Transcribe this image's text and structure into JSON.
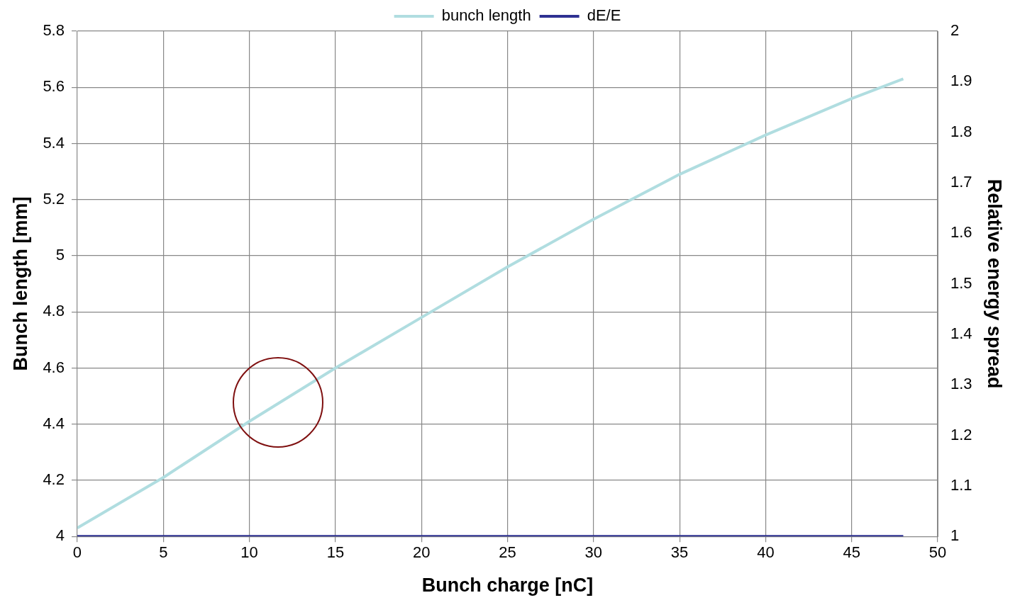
{
  "chart_data": {
    "type": "line",
    "xlabel": "Bunch charge [nC]",
    "ylabel": "Bunch length [mm]",
    "y2label": "Relative energy spread",
    "x": [
      0,
      5,
      10,
      15,
      20,
      25,
      30,
      35,
      40,
      45,
      48
    ],
    "series": [
      {
        "name": "bunch length",
        "color": "#b0dde0",
        "values": [
          4.03,
          4.21,
          4.41,
          4.6,
          4.78,
          4.96,
          5.13,
          5.29,
          5.43,
          5.56,
          5.63
        ]
      },
      {
        "name": "dE/E",
        "color": "#2e3192",
        "axis": "y2",
        "values": [
          1,
          1,
          1,
          1,
          1,
          1,
          1,
          1,
          1,
          1,
          1
        ]
      }
    ],
    "xlim": [
      0,
      50
    ],
    "xticks": [
      0,
      5,
      10,
      15,
      20,
      25,
      30,
      35,
      40,
      45,
      50
    ],
    "ylim": [
      4,
      5.8
    ],
    "yticks": [
      4,
      4.2,
      4.4,
      4.6,
      4.8,
      5,
      5.2,
      5.4,
      5.6,
      5.8
    ],
    "y2lim": [
      1,
      2
    ],
    "y2ticks": [
      1,
      1.1,
      1.2,
      1.3,
      1.4,
      1.5,
      1.6,
      1.7,
      1.8,
      1.9,
      2
    ],
    "grid": true,
    "legend": "top",
    "marker": "none",
    "line_style": "solid"
  }
}
